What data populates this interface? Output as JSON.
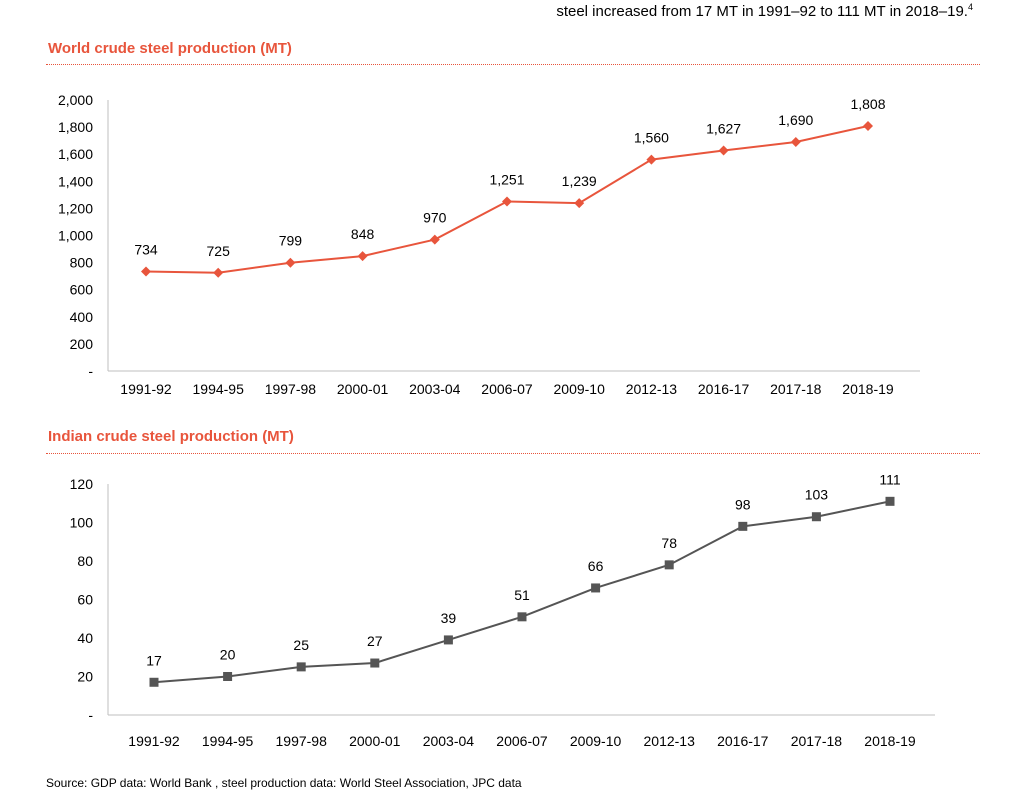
{
  "intro": {
    "text": "steel increased from 17 MT in 1991–92 to 111 MT in 2018–19.",
    "footnote": "4"
  },
  "charts": {
    "world": {
      "title": "World crude steel production (MT)"
    },
    "india": {
      "title": "Indian crude steel production (MT)"
    }
  },
  "source": "Source: GDP data: World Bank , steel production data: World Steel Association, JPC data",
  "colors": {
    "accent": "#e8553c",
    "world_series": "#e8553c",
    "india_series": "#555555"
  },
  "chart_data": [
    {
      "type": "line",
      "title": "World crude steel production (MT)",
      "categories": [
        "1991-92",
        "1994-95",
        "1997-98",
        "2000-01",
        "2003-04",
        "2006-07",
        "2009-10",
        "2012-13",
        "2016-17",
        "2017-18",
        "2018-19"
      ],
      "series": [
        {
          "values": [
            734,
            725,
            799,
            848,
            970,
            1251,
            1239,
            1560,
            1627,
            1690,
            1808
          ],
          "data_labels": [
            "734",
            "725",
            "799",
            "848",
            "970",
            "1,251",
            "1,239",
            "1,560",
            "1,627",
            "1,690",
            "1,808"
          ],
          "marker": "diamond",
          "color": "#e8553c"
        }
      ],
      "ylim": [
        0,
        2000
      ],
      "yticks": [
        0,
        200,
        400,
        600,
        800,
        1000,
        1200,
        1400,
        1600,
        1800,
        2000
      ],
      "ytick_labels": [
        "-",
        "200",
        "400",
        "600",
        "800",
        "1,000",
        "1,200",
        "1,400",
        "1,600",
        "1,800",
        "2,000"
      ],
      "grid": false,
      "legend": "none",
      "xlabel": "",
      "ylabel": ""
    },
    {
      "type": "line",
      "title": "Indian crude steel production (MT)",
      "categories": [
        "1991-92",
        "1994-95",
        "1997-98",
        "2000-01",
        "2003-04",
        "2006-07",
        "2009-10",
        "2012-13",
        "2016-17",
        "2017-18",
        "2018-19"
      ],
      "series": [
        {
          "values": [
            17,
            20,
            25,
            27,
            39,
            51,
            66,
            78,
            98,
            103,
            111
          ],
          "data_labels": [
            "17",
            "20",
            "25",
            "27",
            "39",
            "51",
            "66",
            "78",
            "98",
            "103",
            "111"
          ],
          "marker": "square",
          "color": "#555555"
        }
      ],
      "ylim": [
        0,
        120
      ],
      "yticks": [
        0,
        20,
        40,
        60,
        80,
        100,
        120
      ],
      "ytick_labels": [
        "-",
        "20",
        "40",
        "60",
        "80",
        "100",
        "120"
      ],
      "grid": false,
      "legend": "none",
      "xlabel": "",
      "ylabel": ""
    }
  ]
}
